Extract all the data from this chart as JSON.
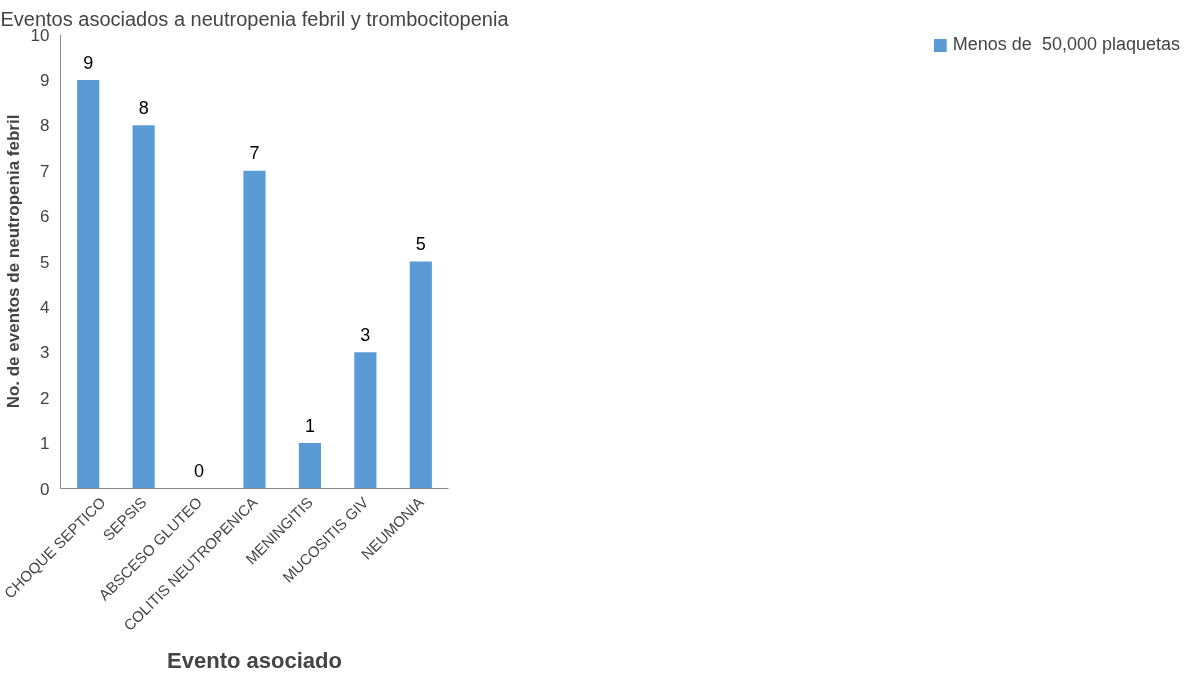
{
  "chart_data": {
    "type": "bar",
    "title": "Eventos asociados a neutropenia febril y trombocitopenia",
    "xlabel": "Evento asociado",
    "ylabel": "No. de eventos de neutropenia febril",
    "categories": [
      "CHOQUE SEPTICO",
      "SEPSIS",
      "ABSCESO GLUTEO",
      "COLITIS NEUTROPENICA",
      "MENINGITIS",
      "MUCOSITIS GIV",
      "NEUMONIA"
    ],
    "series": [
      {
        "name": "Menos de  50,000 plaquetas",
        "color": "#5b9bd5",
        "values": [
          9,
          8,
          0,
          7,
          1,
          3,
          5
        ]
      }
    ],
    "ylim": [
      0,
      10
    ],
    "yticks": [
      0,
      1,
      2,
      3,
      4,
      5,
      6,
      7,
      8,
      9,
      10
    ],
    "grid": false,
    "legend": "right",
    "data_labels": true
  }
}
